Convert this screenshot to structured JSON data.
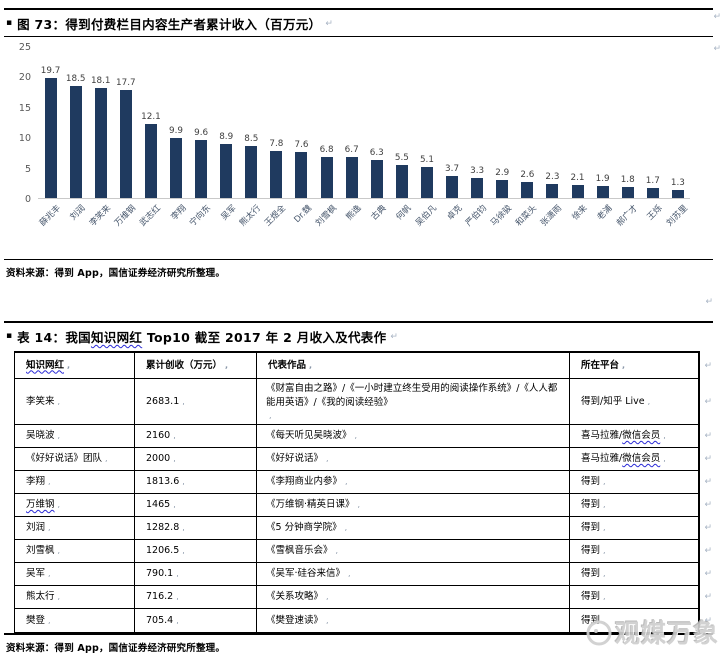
{
  "marks": {
    "return": "↵"
  },
  "figure": {
    "bullet": "▪",
    "title": "图 73：得到付费栏目内容生产者累计收入（百万元）",
    "source": "资料来源：得到 App，国信证券经济研究所整理。"
  },
  "chart_data": {
    "type": "bar",
    "title": "得到付费栏目内容生产者累计收入（百万元）",
    "categories": [
      "薛兆丰",
      "刘润",
      "李笑来",
      "万维钢",
      "武志红",
      "李翔",
      "宁向东",
      "吴军",
      "熊太行",
      "王煜全",
      "Dr.魏",
      "刘雪枫",
      "熊逸",
      "古典",
      "何帆",
      "吴伯凡",
      "卓克",
      "严伯钧",
      "马徐骏",
      "和菜头",
      "张潇雨",
      "徐来",
      "老浦",
      "郝广才",
      "王烁",
      "刘苏里"
    ],
    "values": [
      19.7,
      18.5,
      18.1,
      17.7,
      12.1,
      9.9,
      9.6,
      8.9,
      8.5,
      7.8,
      7.6,
      6.8,
      6.7,
      6.3,
      5.5,
      5.1,
      3.7,
      3.3,
      2.9,
      2.6,
      2.3,
      2.1,
      1.9,
      1.8,
      1.7,
      1.3
    ],
    "ylabel": "",
    "xlabel": "",
    "ylim": [
      0,
      25
    ],
    "yticks": [
      0,
      5,
      10,
      15,
      20,
      25
    ],
    "grid": false,
    "legend": "none",
    "bar_color": "#1f3a5f"
  },
  "table": {
    "bullet": "▪",
    "title_parts": [
      {
        "t": "表 14：我国",
        "w": false
      },
      {
        "t": "知识网红",
        "w": true
      },
      {
        "t": " Top10 截至 2017 年 2 月收入及代表作",
        "w": false
      }
    ],
    "columns": [
      [
        {
          "t": "知识网红",
          "w": true
        }
      ],
      [
        {
          "t": "累计创收（万元）",
          "w": false
        }
      ],
      [
        {
          "t": "代表作品",
          "w": false
        }
      ],
      [
        {
          "t": "所在平台",
          "w": false
        }
      ]
    ],
    "rows": [
      {
        "name": [
          {
            "t": "李笑来",
            "w": false
          }
        ],
        "revenue": "2683.1",
        "works": "《财富自由之路》/《一小时建立终生受用的阅读操作系统》/《人人都能用英语》/《我的阅读经验》",
        "platform": [
          {
            "t": "得到/知乎 Live",
            "w": false
          }
        ]
      },
      {
        "name": [
          {
            "t": "吴晓波",
            "w": false
          }
        ],
        "revenue": "2160",
        "works": "《每天听见吴晓波》",
        "platform": [
          {
            "t": "喜马拉雅/",
            "w": false
          },
          {
            "t": "微信会员",
            "w": true
          }
        ]
      },
      {
        "name": [
          {
            "t": "《好好说话》团队",
            "w": false
          }
        ],
        "revenue": "2000",
        "works": "《好好说话》",
        "platform": [
          {
            "t": "喜马拉雅/",
            "w": false
          },
          {
            "t": "微信会员",
            "w": true
          }
        ]
      },
      {
        "name": [
          {
            "t": "李翔",
            "w": false
          }
        ],
        "revenue": "1813.6",
        "works": "《李翔商业内参》",
        "platform": [
          {
            "t": "得到",
            "w": false
          }
        ]
      },
      {
        "name": [
          {
            "t": "万维钢",
            "w": true
          }
        ],
        "revenue": "1465",
        "works": "《万维钢·精英日课》",
        "platform": [
          {
            "t": "得到",
            "w": false
          }
        ]
      },
      {
        "name": [
          {
            "t": "刘润",
            "w": false
          }
        ],
        "revenue": "1282.8",
        "works": "《5 分钟商学院》",
        "platform": [
          {
            "t": "得到",
            "w": false
          }
        ]
      },
      {
        "name": [
          {
            "t": "刘雪枫",
            "w": false
          }
        ],
        "revenue": "1206.5",
        "works": "《雪枫音乐会》",
        "platform": [
          {
            "t": "得到",
            "w": false
          }
        ]
      },
      {
        "name": [
          {
            "t": "吴军",
            "w": false
          }
        ],
        "revenue": "790.1",
        "works": "《吴军·硅谷来信》",
        "platform": [
          {
            "t": "得到",
            "w": false
          }
        ]
      },
      {
        "name": [
          {
            "t": "熊太行",
            "w": false
          }
        ],
        "revenue": "716.2",
        "works": "《关系攻略》",
        "platform": [
          {
            "t": "得到",
            "w": false
          }
        ]
      },
      {
        "name": [
          {
            "t": "樊登",
            "w": false
          }
        ],
        "revenue": "705.4",
        "works": "《樊登速读》",
        "platform": [
          {
            "t": "得到",
            "w": false
          }
        ]
      }
    ],
    "source": "资料来源：得到 App，国信证券经济研究所整理。"
  },
  "watermark": {
    "text": "观媒万象"
  }
}
